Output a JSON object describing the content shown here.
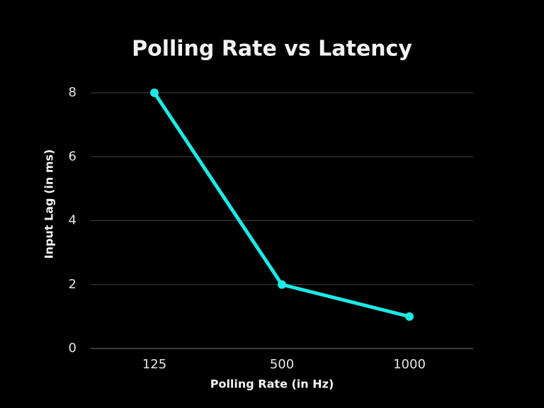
{
  "chart_data": {
    "type": "line",
    "title": "Polling Rate vs Latency",
    "x_label": "Polling Rate (in Hz)",
    "y_label": "Input Lag (in ms)",
    "categories": [
      "125",
      "500",
      "1000"
    ],
    "values": [
      8,
      2,
      1
    ],
    "color": "#1de9e6",
    "ylim": [
      0,
      8
    ],
    "yticks": [
      0,
      2,
      4,
      6,
      8
    ],
    "grid": true
  }
}
